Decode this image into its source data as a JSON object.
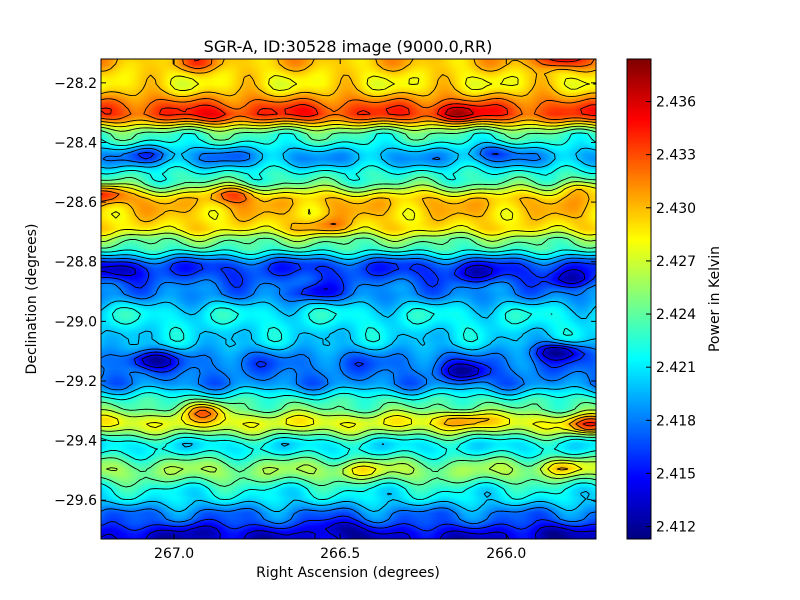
{
  "chart_data": {
    "type": "heatmap",
    "title": "SGR-A, ID:30528 image (9000.0,RR)",
    "xlabel": "Right Ascension (degrees)",
    "ylabel": "Declination (degrees)",
    "colorbar_label": "Power in Kelvin",
    "colormap": "jet",
    "xlim": [
      267.22,
      265.73
    ],
    "ylim": [
      -29.73,
      -28.12
    ],
    "x_ticks": [
      {
        "value": 267.0,
        "label": "267.0"
      },
      {
        "value": 266.5,
        "label": "266.5"
      },
      {
        "value": 266.0,
        "label": "266.0"
      }
    ],
    "y_ticks": [
      {
        "value": -28.2,
        "label": "−28.2"
      },
      {
        "value": -28.4,
        "label": "−28.4"
      },
      {
        "value": -28.6,
        "label": "−28.6"
      },
      {
        "value": -28.8,
        "label": "−28.8"
      },
      {
        "value": -29.0,
        "label": "−29.0"
      },
      {
        "value": -29.2,
        "label": "−29.2"
      },
      {
        "value": -29.4,
        "label": "−29.4"
      },
      {
        "value": -29.6,
        "label": "−29.6"
      }
    ],
    "colorbar_range": [
      2.4113,
      2.4384
    ],
    "colorbar_ticks": [
      {
        "value": 2.412,
        "label": "2.412"
      },
      {
        "value": 2.415,
        "label": "2.415"
      },
      {
        "value": 2.418,
        "label": "2.418"
      },
      {
        "value": 2.421,
        "label": "2.421"
      },
      {
        "value": 2.424,
        "label": "2.424"
      },
      {
        "value": 2.427,
        "label": "2.427"
      },
      {
        "value": 2.43,
        "label": "2.430"
      },
      {
        "value": 2.433,
        "label": "2.433"
      },
      {
        "value": 2.436,
        "label": "2.436"
      }
    ],
    "dec_profile": [
      {
        "dec": -28.12,
        "value": 2.43
      },
      {
        "dec": -28.2,
        "value": 2.4285
      },
      {
        "dec": -28.3,
        "value": 2.4335
      },
      {
        "dec": -28.38,
        "value": 2.423
      },
      {
        "dec": -28.45,
        "value": 2.419
      },
      {
        "dec": -28.52,
        "value": 2.423
      },
      {
        "dec": -28.6,
        "value": 2.43
      },
      {
        "dec": -28.68,
        "value": 2.429
      },
      {
        "dec": -28.74,
        "value": 2.424
      },
      {
        "dec": -28.82,
        "value": 2.416
      },
      {
        "dec": -28.9,
        "value": 2.418
      },
      {
        "dec": -28.98,
        "value": 2.4215
      },
      {
        "dec": -29.06,
        "value": 2.4205
      },
      {
        "dec": -29.14,
        "value": 2.4175
      },
      {
        "dec": -29.2,
        "value": 2.418
      },
      {
        "dec": -29.28,
        "value": 2.4235
      },
      {
        "dec": -29.34,
        "value": 2.428
      },
      {
        "dec": -29.42,
        "value": 2.421
      },
      {
        "dec": -29.5,
        "value": 2.4255
      },
      {
        "dec": -29.58,
        "value": 2.4215
      },
      {
        "dec": -29.66,
        "value": 2.4175
      },
      {
        "dec": -29.73,
        "value": 2.4135
      }
    ],
    "features": [
      {
        "ra": 266.87,
        "dec": -28.31,
        "value": 2.435
      },
      {
        "ra": 266.58,
        "dec": -28.3,
        "value": 2.4345
      },
      {
        "ra": 266.15,
        "dec": -28.3,
        "value": 2.4375
      },
      {
        "ra": 265.84,
        "dec": -28.12,
        "value": 2.4365
      },
      {
        "ra": 266.93,
        "dec": -28.13,
        "value": 2.4325
      },
      {
        "ra": 267.21,
        "dec": -28.57,
        "value": 2.4335
      },
      {
        "ra": 266.82,
        "dec": -28.57,
        "value": 2.4325
      },
      {
        "ra": 266.54,
        "dec": -28.68,
        "value": 2.432
      },
      {
        "ra": 267.08,
        "dec": -28.44,
        "value": 2.416
      },
      {
        "ra": 266.84,
        "dec": -28.44,
        "value": 2.4175
      },
      {
        "ra": 266.03,
        "dec": -28.43,
        "value": 2.4165
      },
      {
        "ra": 265.78,
        "dec": -28.55,
        "value": 2.4295
      },
      {
        "ra": 267.17,
        "dec": -28.83,
        "value": 2.4125
      },
      {
        "ra": 266.08,
        "dec": -28.84,
        "value": 2.413
      },
      {
        "ra": 265.8,
        "dec": -28.86,
        "value": 2.4125
      },
      {
        "ra": 266.58,
        "dec": -28.9,
        "value": 2.414
      },
      {
        "ra": 267.07,
        "dec": -29.13,
        "value": 2.4125
      },
      {
        "ra": 266.12,
        "dec": -29.17,
        "value": 2.412
      },
      {
        "ra": 265.84,
        "dec": -29.1,
        "value": 2.4115
      },
      {
        "ra": 266.91,
        "dec": -29.3,
        "value": 2.431
      },
      {
        "ra": 266.13,
        "dec": -29.33,
        "value": 2.432
      },
      {
        "ra": 265.75,
        "dec": -29.35,
        "value": 2.434
      },
      {
        "ra": 266.44,
        "dec": -29.5,
        "value": 2.429
      },
      {
        "ra": 265.83,
        "dec": -29.49,
        "value": 2.43
      },
      {
        "ra": 266.92,
        "dec": -29.7,
        "value": 2.413
      },
      {
        "ra": 266.5,
        "dec": -29.69,
        "value": 2.4125
      },
      {
        "ra": 265.85,
        "dec": -29.7,
        "value": 2.413
      }
    ],
    "contour_levels": [
      2.414,
      2.416,
      2.418,
      2.42,
      2.422,
      2.424,
      2.426,
      2.428,
      2.43,
      2.432,
      2.434,
      2.436
    ]
  }
}
